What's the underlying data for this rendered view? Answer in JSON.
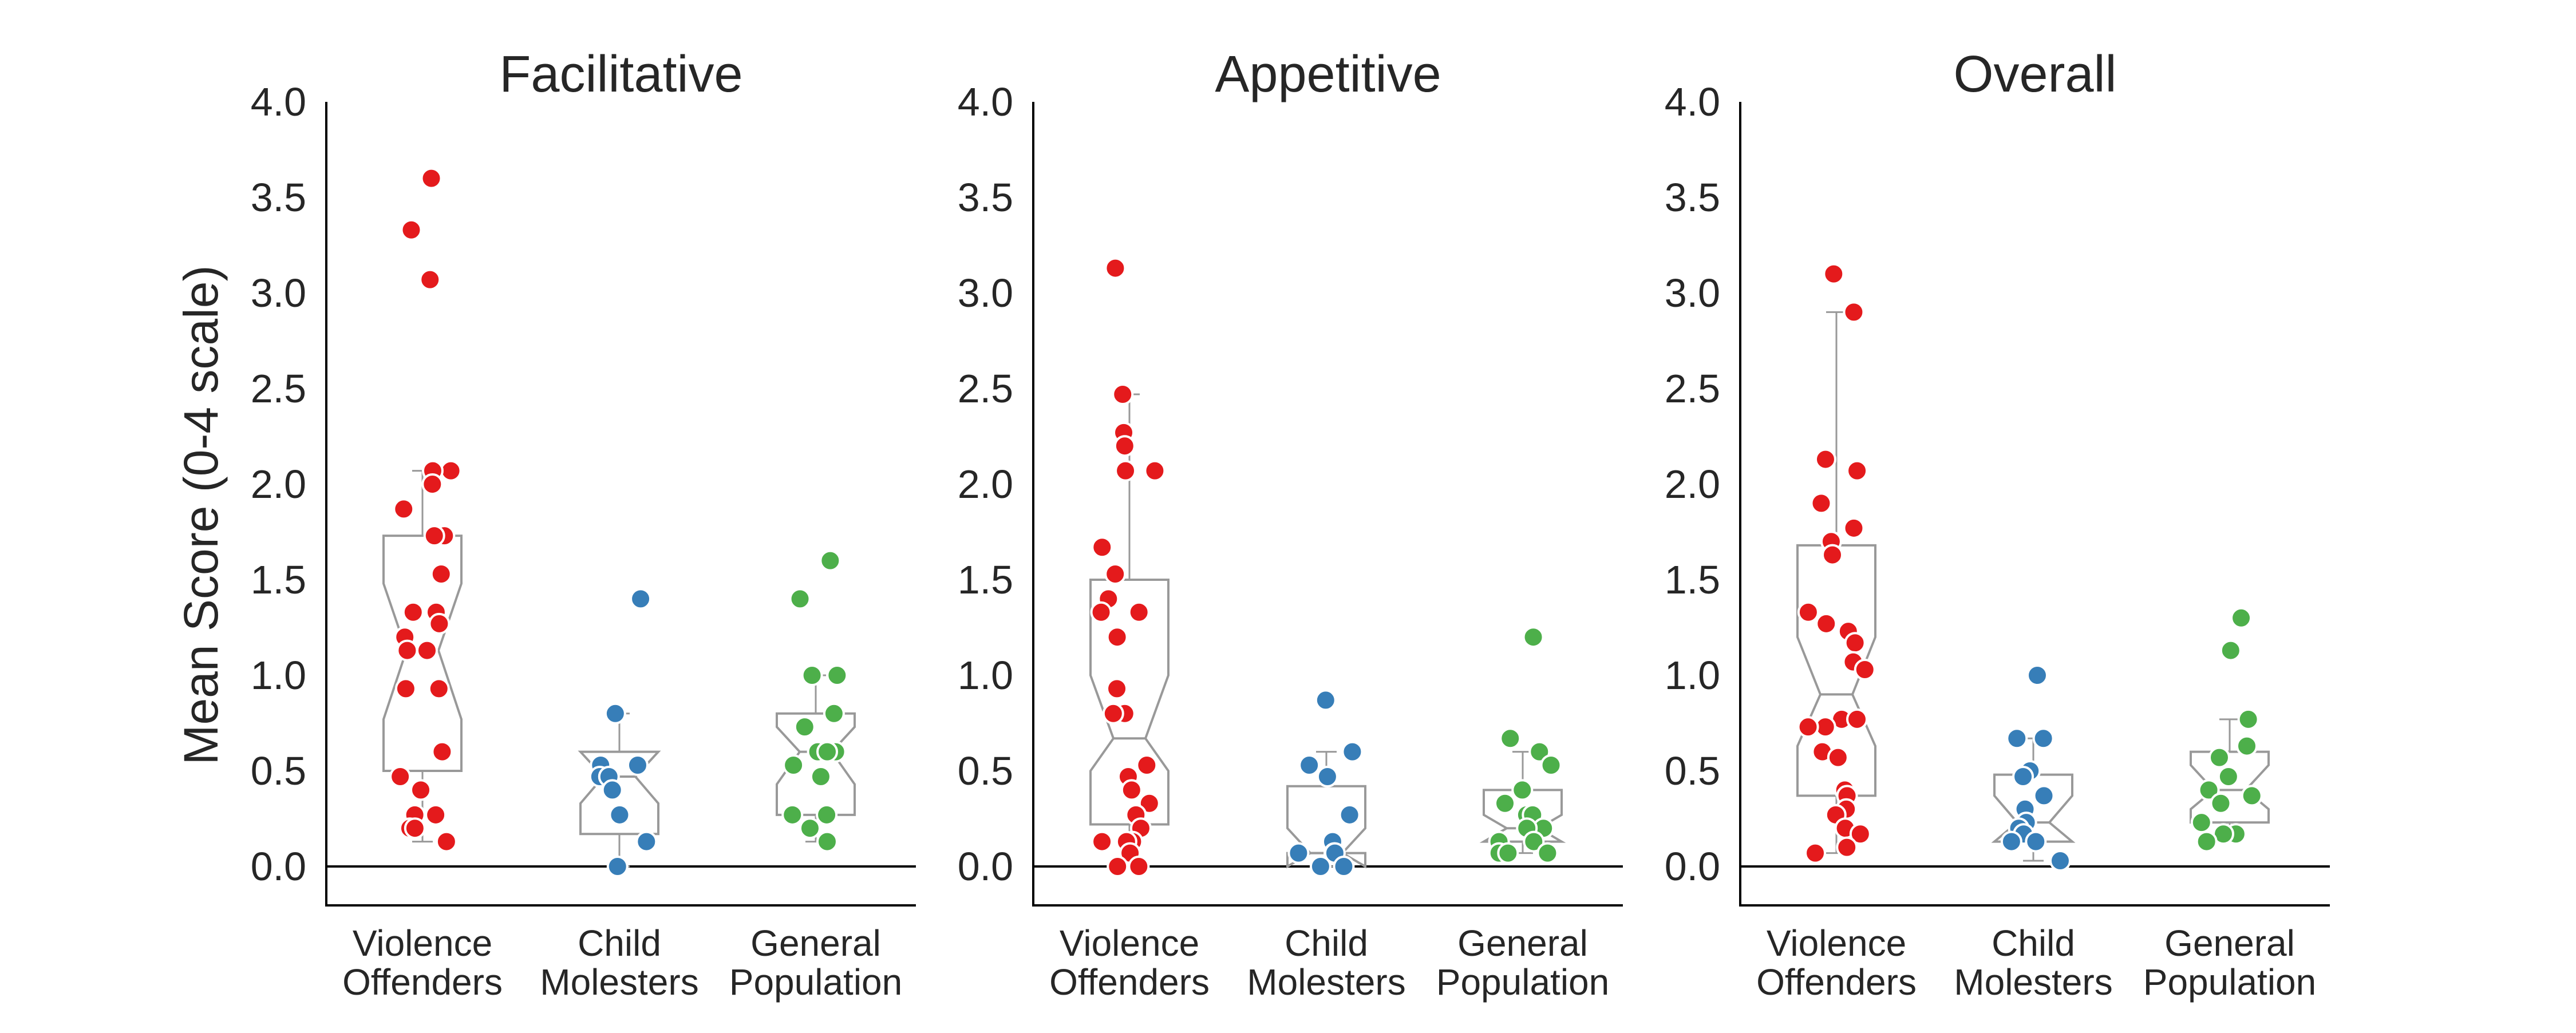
{
  "chart_data": {
    "type": "scatter",
    "ylabel": "Mean Score (0-4 scale)",
    "ylim": [
      0,
      4
    ],
    "yticks": [
      "0.0",
      "0.5",
      "1.0",
      "1.5",
      "2.0",
      "2.5",
      "3.0",
      "3.5",
      "4.0"
    ],
    "categories": [
      {
        "line1": "Violence",
        "line2": "Offenders",
        "color": "#e41a1c"
      },
      {
        "line1": "Child",
        "line2": "Molesters",
        "color": "#377eb8"
      },
      {
        "line1": "General",
        "line2": "Population",
        "color": "#4daf4a"
      }
    ],
    "legend": "none",
    "grid": false,
    "panels": [
      {
        "title": "Facilitative",
        "groups": [
          {
            "box": {
              "q1": 0.5,
              "median": 1.13,
              "q3": 1.73,
              "whisker_low": 0.13,
              "whisker_high": 2.07,
              "notch_low": 0.77,
              "notch_high": 1.48
            },
            "points": [
              3.6,
              3.33,
              3.07,
              2.07,
              2.07,
              2.0,
              1.87,
              1.73,
              1.73,
              1.53,
              1.33,
              1.33,
              1.27,
              1.2,
              1.13,
              1.13,
              0.93,
              0.93,
              0.6,
              0.6,
              0.47,
              0.4,
              0.27,
              0.27,
              0.2,
              0.2,
              0.13
            ]
          },
          {
            "box": {
              "q1": 0.17,
              "median": 0.47,
              "q3": 0.6,
              "whisker_low": 0.0,
              "whisker_high": 0.8,
              "notch_low": 0.33,
              "notch_high": 0.6
            },
            "points": [
              1.4,
              0.8,
              0.8,
              0.53,
              0.53,
              0.47,
              0.47,
              0.4,
              0.27,
              0.13,
              0.0
            ]
          },
          {
            "box": {
              "q1": 0.27,
              "median": 0.6,
              "q3": 0.8,
              "whisker_low": 0.13,
              "whisker_high": 1.0,
              "notch_low": 0.43,
              "notch_high": 0.73
            },
            "points": [
              1.6,
              1.4,
              1.0,
              1.0,
              0.8,
              0.73,
              0.6,
              0.6,
              0.6,
              0.53,
              0.47,
              0.27,
              0.27,
              0.2,
              0.13
            ]
          }
        ]
      },
      {
        "title": "Appetitive",
        "groups": [
          {
            "box": {
              "q1": 0.22,
              "median": 0.67,
              "q3": 1.5,
              "whisker_low": 0.0,
              "whisker_high": 2.47,
              "notch_low": 0.5,
              "notch_high": 1.0
            },
            "points": [
              3.13,
              2.47,
              2.27,
              2.2,
              2.07,
              2.07,
              1.67,
              1.53,
              1.4,
              1.33,
              1.33,
              1.2,
              0.93,
              0.8,
              0.8,
              0.53,
              0.47,
              0.4,
              0.33,
              0.27,
              0.2,
              0.13,
              0.13,
              0.13,
              0.07,
              0.0,
              0.0
            ]
          },
          {
            "box": {
              "q1": 0.07,
              "median": 0.07,
              "q3": 0.42,
              "whisker_low": 0.0,
              "whisker_high": 0.6,
              "notch_low": 0.0,
              "notch_high": 0.2
            },
            "points": [
              0.87,
              0.6,
              0.53,
              0.47,
              0.27,
              0.13,
              0.07,
              0.07,
              0.07,
              0.0,
              0.0
            ]
          },
          {
            "box": {
              "q1": 0.13,
              "median": 0.2,
              "q3": 0.4,
              "whisker_low": 0.07,
              "whisker_high": 0.6,
              "notch_low": 0.13,
              "notch_high": 0.27
            },
            "points": [
              1.2,
              0.67,
              0.6,
              0.53,
              0.4,
              0.33,
              0.27,
              0.27,
              0.2,
              0.2,
              0.13,
              0.13,
              0.07,
              0.07,
              0.07
            ]
          }
        ]
      },
      {
        "title": "Overall",
        "groups": [
          {
            "box": {
              "q1": 0.37,
              "median": 0.9,
              "q3": 1.68,
              "whisker_low": 0.07,
              "whisker_high": 2.9,
              "notch_low": 0.63,
              "notch_high": 1.2
            },
            "points": [
              3.1,
              2.9,
              2.13,
              2.07,
              1.9,
              1.77,
              1.7,
              1.63,
              1.33,
              1.27,
              1.23,
              1.17,
              1.07,
              1.03,
              0.77,
              0.77,
              0.73,
              0.73,
              0.6,
              0.57,
              0.4,
              0.37,
              0.3,
              0.27,
              0.2,
              0.17,
              0.1,
              0.07
            ]
          },
          {
            "box": {
              "q1": 0.13,
              "median": 0.23,
              "q3": 0.48,
              "whisker_low": 0.03,
              "whisker_high": 0.67,
              "notch_low": 0.13,
              "notch_high": 0.37
            },
            "points": [
              1.0,
              0.67,
              0.67,
              0.5,
              0.47,
              0.37,
              0.3,
              0.23,
              0.2,
              0.17,
              0.13,
              0.13,
              0.03
            ]
          },
          {
            "box": {
              "q1": 0.23,
              "median": 0.4,
              "q3": 0.6,
              "whisker_low": 0.13,
              "whisker_high": 0.77,
              "notch_low": 0.3,
              "notch_high": 0.53
            },
            "points": [
              1.3,
              1.13,
              0.77,
              0.63,
              0.57,
              0.47,
              0.47,
              0.4,
              0.37,
              0.33,
              0.23,
              0.17,
              0.17,
              0.13
            ]
          }
        ]
      }
    ]
  }
}
